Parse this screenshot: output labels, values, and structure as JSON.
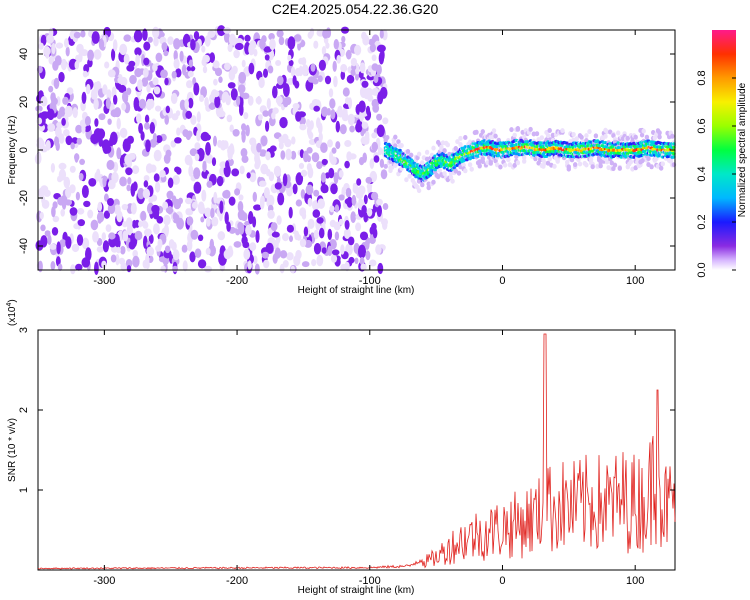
{
  "title": "C2E4.2025.054.22.36.G20",
  "colors": {
    "snr_line": "#e0201c",
    "low_amp": "#7a1ee8",
    "background": "#ffffff"
  },
  "chart_data": [
    {
      "type": "heatmap",
      "name": "spectrogram",
      "xlabel": "Height of straight line (km)",
      "ylabel": "Frequency (Hz)",
      "xlim": [
        -350,
        130
      ],
      "ylim": [
        -50,
        50
      ],
      "x_ticks": [
        -300,
        -200,
        -100,
        0,
        100
      ],
      "x_tick_labels": [
        "-300",
        "-200",
        "-100",
        "0",
        "100"
      ],
      "y_ticks": [
        -40,
        -20,
        0,
        20,
        40
      ],
      "y_tick_labels": [
        "-40",
        "-20",
        "0",
        "20",
        "40"
      ],
      "noise_region_x": [
        -350,
        -88
      ],
      "signal_start_x": -88,
      "signal_track": {
        "x": [
          -88,
          -80,
          -72,
          -66,
          -60,
          -55,
          -50,
          -45,
          -40,
          -35,
          -30,
          -25,
          -20,
          -15,
          -10,
          -5,
          0,
          10,
          20,
          30,
          40,
          50,
          60,
          70,
          80,
          90,
          100,
          110,
          120,
          130
        ],
        "y": [
          0,
          -2,
          -5,
          -8,
          -10,
          -8,
          -5,
          -4,
          -6,
          -4,
          -2,
          -1,
          0,
          1,
          1,
          0,
          0,
          1,
          1,
          0,
          1,
          0,
          0,
          1,
          0,
          0,
          0,
          1,
          0,
          0
        ]
      },
      "colorbar": {
        "label": "Normalized spectral amplitude",
        "range": [
          0,
          1
        ],
        "ticks": [
          0.0,
          0.2,
          0.4,
          0.6,
          0.8
        ],
        "tick_labels": [
          "0.0",
          "0.2",
          "0.4",
          "0.6",
          "0.8"
        ]
      }
    },
    {
      "type": "line",
      "name": "snr",
      "xlabel": "Height of straight line (km)",
      "ylabel": "SNR (10 * v/v)",
      "scale_label_prefix": "(x10",
      "scale_label_exp": "4",
      "scale_label_suffix": ")",
      "xlim": [
        -350,
        130
      ],
      "ylim": [
        0,
        3
      ],
      "x_ticks": [
        -300,
        -200,
        -100,
        0,
        100
      ],
      "x_tick_labels": [
        "-300",
        "-200",
        "-100",
        "0",
        "100"
      ],
      "y_ticks": [
        1,
        2,
        3
      ],
      "y_tick_labels": [
        "1",
        "2",
        "3"
      ],
      "envelope": {
        "x": [
          -350,
          -100,
          -70,
          -50,
          -40,
          -30,
          -20,
          -10,
          0,
          10,
          20,
          30,
          32,
          35,
          40,
          50,
          60,
          70,
          80,
          90,
          100,
          110,
          117,
          120,
          125,
          130
        ],
        "y": [
          0.02,
          0.03,
          0.05,
          0.25,
          0.45,
          0.6,
          0.7,
          0.75,
          0.85,
          0.9,
          1.0,
          1.1,
          2.95,
          1.2,
          1.3,
          1.25,
          1.3,
          1.35,
          1.3,
          1.4,
          1.35,
          1.4,
          2.25,
          1.3,
          1.25,
          1.4
        ]
      }
    }
  ]
}
